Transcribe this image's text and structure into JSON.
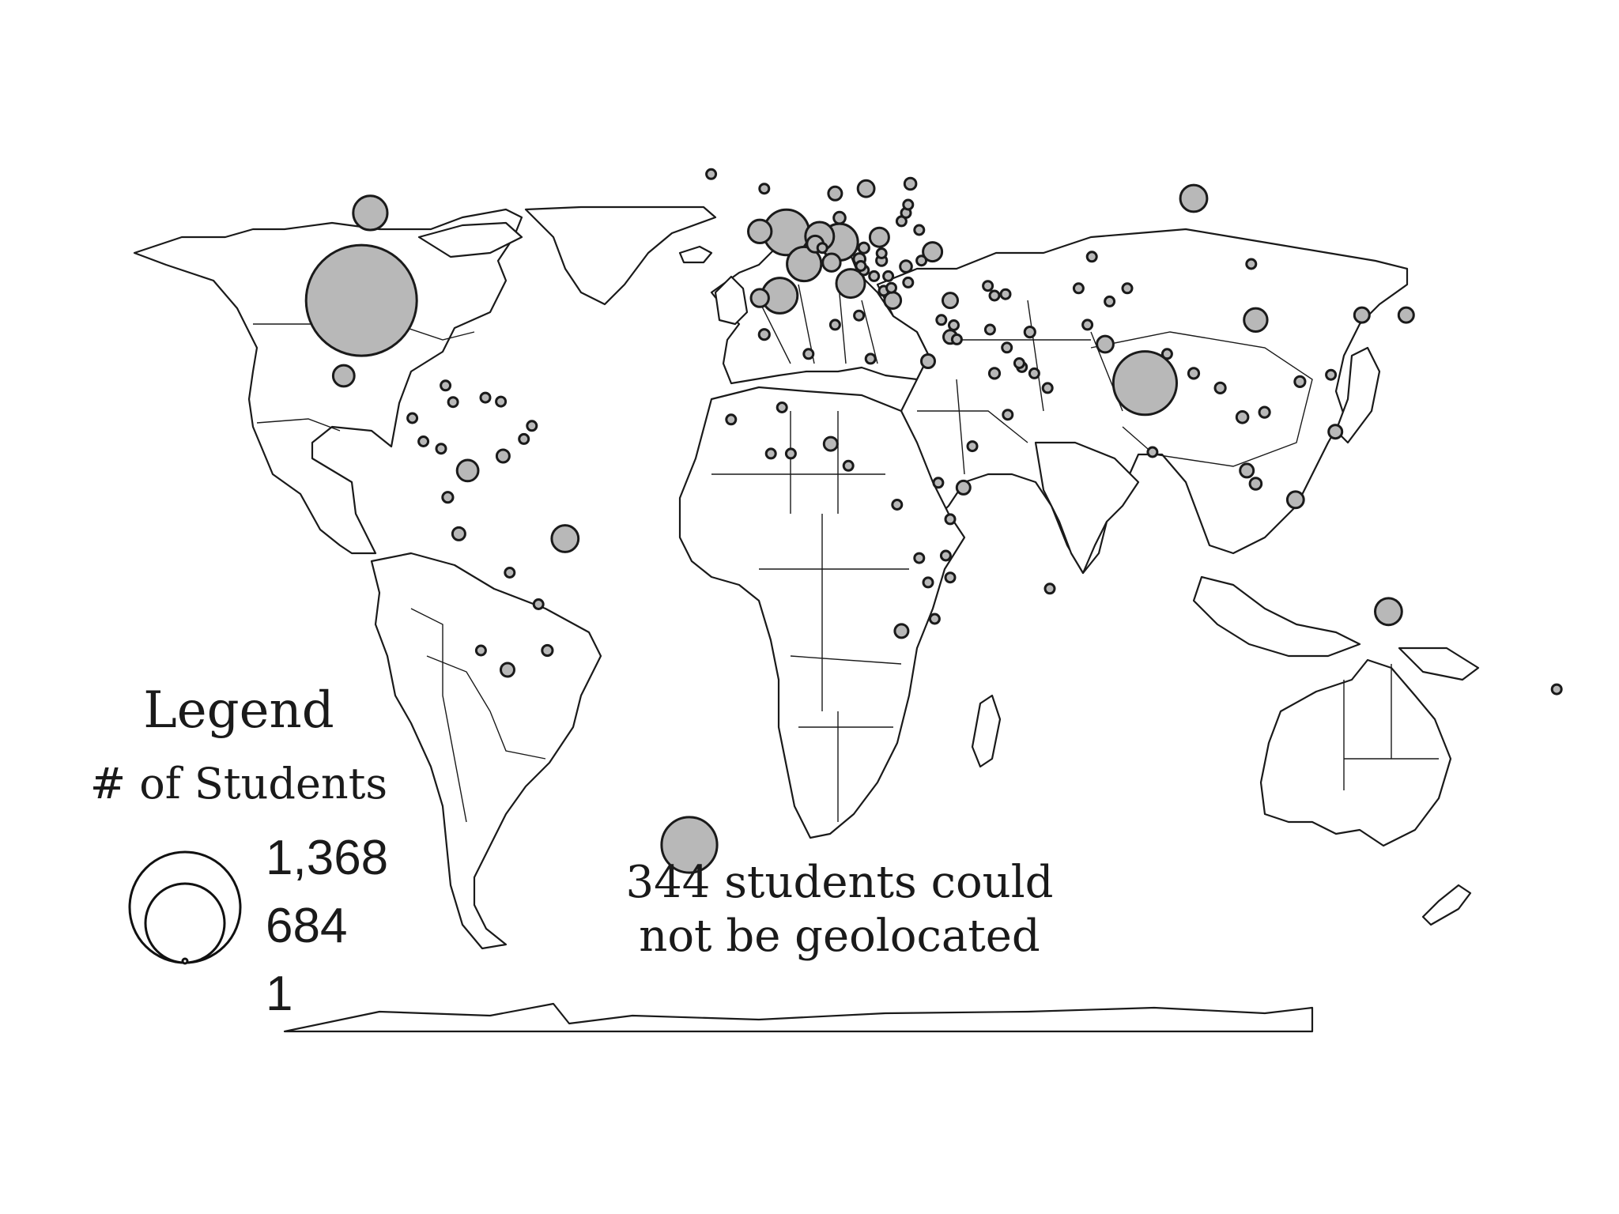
{
  "legend": {
    "title": "Legend",
    "subtitle": "# of Students",
    "values": [
      "1,368",
      "684",
      "1"
    ],
    "max_students": 1368
  },
  "note": {
    "count": 344,
    "line1": "344 students could",
    "line2": "not be geolocated"
  },
  "colors": {
    "bubble_fill": "#b8b8b8",
    "outline": "#1a1a1a",
    "background": "#ffffff"
  },
  "chart_data": {
    "type": "proportional-symbol-map",
    "title": "",
    "value_label": "# of Students",
    "symbols": [
      {
        "place": "United States",
        "lon": -98,
        "lat": 39,
        "value": 1368
      },
      {
        "place": "India",
        "lon": 79,
        "lat": 22,
        "value": 450
      },
      {
        "place": "United Kingdom",
        "lon": -2,
        "lat": 53,
        "value": 230
      },
      {
        "place": "Germany",
        "lon": 10,
        "lat": 51,
        "value": 150
      },
      {
        "place": "France",
        "lon": 2,
        "lat": 46.5,
        "value": 130
      },
      {
        "place": "Spain",
        "lon": -3.5,
        "lat": 40,
        "value": 140
      },
      {
        "place": "Canada",
        "lon": -96,
        "lat": 57,
        "value": 130
      },
      {
        "place": "Netherlands",
        "lon": 5.5,
        "lat": 52.2,
        "value": 90
      },
      {
        "place": "Italy",
        "lon": 12.5,
        "lat": 42.5,
        "value": 90
      },
      {
        "place": "Ireland",
        "lon": -8,
        "lat": 53.2,
        "value": 60
      },
      {
        "place": "Russia",
        "lon": 90,
        "lat": 60,
        "value": 80
      },
      {
        "place": "China",
        "lon": 104,
        "lat": 35,
        "value": 60
      },
      {
        "place": "Brazil",
        "lon": -52,
        "lat": -10,
        "value": 80
      },
      {
        "place": "Australia",
        "lon": 134,
        "lat": -25,
        "value": 80
      },
      {
        "place": "Colombia",
        "lon": -74,
        "lat": 4,
        "value": 50
      },
      {
        "place": "Mexico",
        "lon": -102,
        "lat": 23.5,
        "value": 50
      },
      {
        "place": "Portugal",
        "lon": -8,
        "lat": 39.5,
        "value": 35
      },
      {
        "place": "Switzerland",
        "lon": 8.2,
        "lat": 46.8,
        "value": 35
      },
      {
        "place": "Poland",
        "lon": 19,
        "lat": 52,
        "value": 40
      },
      {
        "place": "Sweden",
        "lon": 16,
        "lat": 62,
        "value": 30
      },
      {
        "place": "Ukraine",
        "lon": 31,
        "lat": 49,
        "value": 40
      },
      {
        "place": "Greece",
        "lon": 22,
        "lat": 39,
        "value": 30
      },
      {
        "place": "Turkey",
        "lon": 35,
        "lat": 39,
        "value": 25
      },
      {
        "place": "Belgium",
        "lon": 4.5,
        "lat": 50.6,
        "value": 30
      },
      {
        "place": "Indonesia",
        "lon": 113,
        "lat": -2,
        "value": 30
      },
      {
        "place": "Pakistan",
        "lon": 70,
        "lat": 30,
        "value": 30
      },
      {
        "place": "Japan",
        "lon": 138,
        "lat": 36,
        "value": 25
      },
      {
        "place": "South Korea",
        "lon": 128,
        "lat": 36,
        "value": 25
      },
      {
        "place": "Norway",
        "lon": 9,
        "lat": 61,
        "value": 20
      },
      {
        "place": "Finland",
        "lon": 26,
        "lat": 63,
        "value": 15
      },
      {
        "place": "Israel",
        "lon": 35,
        "lat": 31.5,
        "value": 20
      },
      {
        "place": "Egypt",
        "lon": 30,
        "lat": 26.5,
        "value": 20
      },
      {
        "place": "Morocco",
        "lon": -7,
        "lat": 32,
        "value": 12
      },
      {
        "place": "Nigeria",
        "lon": 8,
        "lat": 9.5,
        "value": 20
      },
      {
        "place": "Kenya",
        "lon": 38,
        "lat": 0.5,
        "value": 20
      },
      {
        "place": "Ethiopia",
        "lon": 40,
        "lat": 9,
        "value": 10
      },
      {
        "place": "South Africa",
        "lon": 24,
        "lat": -29,
        "value": 20
      },
      {
        "place": "Peru",
        "lon": -76,
        "lat": -9,
        "value": 18
      },
      {
        "place": "Venezuela",
        "lon": -66,
        "lat": 7,
        "value": 18
      },
      {
        "place": "Ecuador",
        "lon": -78.5,
        "lat": -1.5,
        "value": 12
      },
      {
        "place": "Argentina",
        "lon": -65,
        "lat": -37,
        "value": 20
      },
      {
        "place": "Uruguay",
        "lon": -56,
        "lat": -33,
        "value": 12
      },
      {
        "place": "Paraguay",
        "lon": -58,
        "lat": -23.5,
        "value": 8
      },
      {
        "place": "Bolivia",
        "lon": -64.5,
        "lat": -17,
        "value": 8
      },
      {
        "place": "Chile",
        "lon": -71,
        "lat": -33,
        "value": 10
      },
      {
        "place": "Malaysia",
        "lon": 102,
        "lat": 4,
        "value": 20
      },
      {
        "place": "Singapore",
        "lon": 104,
        "lat": 1.3,
        "value": 15
      },
      {
        "place": "Philippines",
        "lon": 122,
        "lat": 12,
        "value": 20
      },
      {
        "place": "Vietnam",
        "lon": 106,
        "lat": 16,
        "value": 12
      },
      {
        "place": "Thailand",
        "lon": 101,
        "lat": 15,
        "value": 15
      },
      {
        "place": "Bangladesh",
        "lon": 90,
        "lat": 24,
        "value": 12
      },
      {
        "place": "Nepal",
        "lon": 84,
        "lat": 28,
        "value": 8
      },
      {
        "place": "Sri Lanka",
        "lon": 80.7,
        "lat": 7.8,
        "value": 8
      },
      {
        "place": "Myanmar",
        "lon": 96,
        "lat": 21,
        "value": 12
      },
      {
        "place": "Taiwan",
        "lon": 121,
        "lat": 23.7,
        "value": 10
      },
      {
        "place": "Hong Kong",
        "lon": 114,
        "lat": 22.3,
        "value": 12
      },
      {
        "place": "New Zealand",
        "lon": 172,
        "lat": -41,
        "value": 10
      },
      {
        "place": "Iran",
        "lon": 53,
        "lat": 32.5,
        "value": 12
      },
      {
        "place": "Iraq",
        "lon": 44,
        "lat": 33,
        "value": 8
      },
      {
        "place": "Saudi Arabia",
        "lon": 45,
        "lat": 24,
        "value": 12
      },
      {
        "place": "United Arab Emirates",
        "lon": 54,
        "lat": 24,
        "value": 10
      },
      {
        "place": "Qatar",
        "lon": 51.2,
        "lat": 25.3,
        "value": 8
      },
      {
        "place": "Kazakhstan",
        "lon": 67,
        "lat": 48,
        "value": 8
      },
      {
        "place": "Afghanistan",
        "lon": 66,
        "lat": 34,
        "value": 8
      },
      {
        "place": "Uzbekistan",
        "lon": 64,
        "lat": 41.5,
        "value": 8
      },
      {
        "place": "Lebanon",
        "lon": 35.8,
        "lat": 33.9,
        "value": 10
      },
      {
        "place": "Jordan",
        "lon": 36.5,
        "lat": 31,
        "value": 8
      },
      {
        "place": "Cyprus",
        "lon": 33,
        "lat": 35,
        "value": 8
      },
      {
        "place": "Algeria",
        "lon": 3,
        "lat": 28,
        "value": 8
      },
      {
        "place": "Libya",
        "lon": 17,
        "lat": 27,
        "value": 8
      },
      {
        "place": "Tunisia",
        "lon": 9,
        "lat": 34,
        "value": 8
      },
      {
        "place": "Mali",
        "lon": -3,
        "lat": 17,
        "value": 8
      },
      {
        "place": "Senegal",
        "lon": -14.5,
        "lat": 14.5,
        "value": 8
      },
      {
        "place": "Ghana",
        "lon": -1,
        "lat": 7.5,
        "value": 8
      },
      {
        "place": "Côte d'Ivoire",
        "lon": -5.5,
        "lat": 7.5,
        "value": 8
      },
      {
        "place": "Cameroon",
        "lon": 12,
        "lat": 5,
        "value": 8
      },
      {
        "place": "Uganda",
        "lon": 32.3,
        "lat": 1.5,
        "value": 8
      },
      {
        "place": "Tanzania",
        "lon": 35,
        "lat": -6,
        "value": 8
      },
      {
        "place": "DR Congo",
        "lon": 23,
        "lat": -3,
        "value": 8
      },
      {
        "place": "Zambia",
        "lon": 28,
        "lat": -14,
        "value": 8
      },
      {
        "place": "Zimbabwe",
        "lon": 30,
        "lat": -19,
        "value": 8
      },
      {
        "place": "Malawi",
        "lon": 34,
        "lat": -13.5,
        "value": 8
      },
      {
        "place": "Mozambique",
        "lon": 35,
        "lat": -18,
        "value": 8
      },
      {
        "place": "Mauritius",
        "lon": 57.5,
        "lat": -20.3,
        "value": 5
      },
      {
        "place": "Swaziland",
        "lon": 31.5,
        "lat": -26.5,
        "value": 5
      },
      {
        "place": "Cuba",
        "lon": -79,
        "lat": 21.5,
        "value": 8
      },
      {
        "place": "Jamaica",
        "lon": -77.3,
        "lat": 18.1,
        "value": 5
      },
      {
        "place": "Honduras",
        "lon": -86.5,
        "lat": 14.8,
        "value": 5
      },
      {
        "place": "Costa Rica",
        "lon": -84,
        "lat": 10,
        "value": 10
      },
      {
        "place": "Panama",
        "lon": -80,
        "lat": 8.5,
        "value": 8
      },
      {
        "place": "Trinidad and Tobago",
        "lon": -61.3,
        "lat": 10.5,
        "value": 8
      },
      {
        "place": "Barbados",
        "lon": -59.5,
        "lat": 13.2,
        "value": 5
      },
      {
        "place": "Dominican Republic",
        "lon": -70,
        "lat": 19,
        "value": 5
      },
      {
        "place": "Puerto Rico",
        "lon": -66.5,
        "lat": 18.2,
        "value": 5
      },
      {
        "place": "Iceland",
        "lon": -19,
        "lat": 65,
        "value": 5
      },
      {
        "place": "Denmark",
        "lon": 10,
        "lat": 56,
        "value": 15
      },
      {
        "place": "Austria",
        "lon": 14.5,
        "lat": 47.5,
        "value": 15
      },
      {
        "place": "Czech Republic",
        "lon": 15.5,
        "lat": 49.8,
        "value": 12
      },
      {
        "place": "Hungary",
        "lon": 19.5,
        "lat": 47.2,
        "value": 12
      },
      {
        "place": "Romania",
        "lon": 25,
        "lat": 46,
        "value": 15
      },
      {
        "place": "Bulgaria",
        "lon": 25.5,
        "lat": 42.7,
        "value": 10
      },
      {
        "place": "Serbia",
        "lon": 21,
        "lat": 44,
        "value": 10
      },
      {
        "place": "Croatia",
        "lon": 15.5,
        "lat": 45.2,
        "value": 8
      },
      {
        "place": "Slovenia",
        "lon": 14.8,
        "lat": 46.1,
        "value": 8
      },
      {
        "place": "Bosnia and Herzegovina",
        "lon": 17.8,
        "lat": 44,
        "value": 8
      },
      {
        "place": "Albania",
        "lon": 20,
        "lat": 41,
        "value": 8
      },
      {
        "place": "Macedonia",
        "lon": 21.7,
        "lat": 41.6,
        "value": 8
      },
      {
        "place": "Slovakia",
        "lon": 19.5,
        "lat": 48.7,
        "value": 8
      },
      {
        "place": "Lithuania",
        "lon": 24,
        "lat": 55.3,
        "value": 8
      },
      {
        "place": "Latvia",
        "lon": 25,
        "lat": 57,
        "value": 8
      },
      {
        "place": "Estonia",
        "lon": 25.5,
        "lat": 58.7,
        "value": 8
      },
      {
        "place": "Belarus",
        "lon": 28,
        "lat": 53.5,
        "value": 8
      },
      {
        "place": "Moldova",
        "lon": 28.5,
        "lat": 47.2,
        "value": 8
      },
      {
        "place": "Luxembourg",
        "lon": 6.1,
        "lat": 49.8,
        "value": 5
      },
      {
        "place": "Malta",
        "lon": 14.4,
        "lat": 35.9,
        "value": 5
      },
      {
        "place": "Faroe Islands",
        "lon": -7,
        "lat": 62,
        "value": 3
      },
      {
        "place": "Georgia",
        "lon": 43.5,
        "lat": 42,
        "value": 8
      },
      {
        "place": "Armenia",
        "lon": 45,
        "lat": 40,
        "value": 8
      },
      {
        "place": "Azerbaijan",
        "lon": 47.5,
        "lat": 40.3,
        "value": 8
      },
      {
        "place": "Kuwait",
        "lon": 47.8,
        "lat": 29.3,
        "value": 8
      },
      {
        "place": "Bahrain",
        "lon": 50.6,
        "lat": 26.1,
        "value": 5
      },
      {
        "place": "Oman",
        "lon": 57,
        "lat": 21,
        "value": 5
      },
      {
        "place": "Yemen",
        "lon": 48,
        "lat": 15.5,
        "value": 5
      },
      {
        "place": "Mongolia",
        "lon": 103,
        "lat": 46.5,
        "value": 5
      },
      {
        "place": "Kyrgyzstan",
        "lon": 75,
        "lat": 41.5,
        "value": 5
      },
      {
        "place": "Tajikistan",
        "lon": 71,
        "lat": 38.8,
        "value": 5
      }
    ]
  }
}
